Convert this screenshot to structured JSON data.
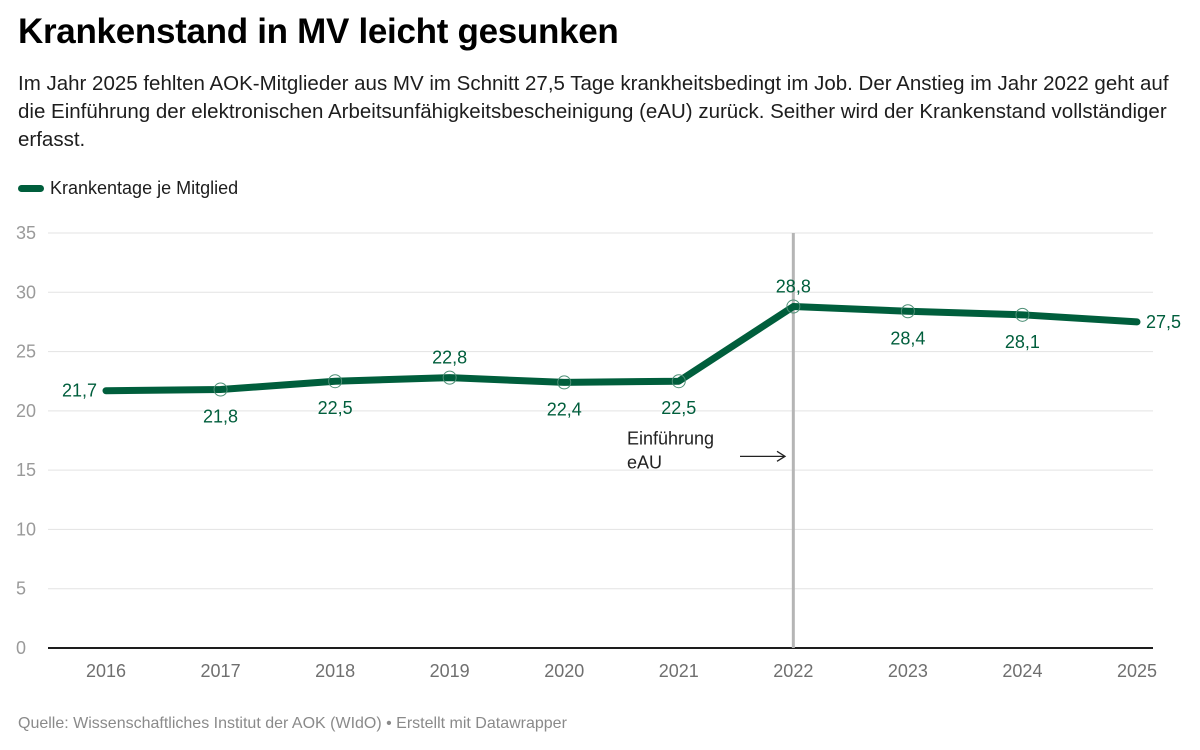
{
  "header": {
    "title": "Krankenstand in MV leicht gesunken",
    "subtitle": "Im Jahr 2025 fehlten AOK-Mitglieder aus MV im Schnitt 27,5 Tage krankheitsbedingt im Job. Der Anstieg im Jahr 2022 geht auf die Einführung der elektronischen Arbeitsunfähigkeitsbescheinigung (eAU) zurück. Seither wird der Krankenstand vollständiger erfasst."
  },
  "footer": {
    "text": "Quelle: Wissenschaftliches Institut der AOK (WIdO) • Erstellt mit Datawrapper"
  },
  "colors": {
    "series": "#005e3c",
    "grid": "#e3e3e3",
    "baseline": "#1d1d1d",
    "marker_line": "#b5b5b5"
  },
  "chart_data": {
    "type": "line",
    "title": "Krankenstand in MV leicht gesunken",
    "xlabel": "",
    "ylabel": "",
    "x": [
      "2016",
      "2017",
      "2018",
      "2019",
      "2020",
      "2021",
      "2022",
      "2023",
      "2024",
      "2025"
    ],
    "series": [
      {
        "name": "Krankentage je Mitglied",
        "values": [
          21.7,
          21.8,
          22.5,
          22.8,
          22.4,
          22.5,
          28.8,
          28.4,
          28.1,
          27.5
        ],
        "labels": [
          "21,7",
          "21,8",
          "22,5",
          "22,8",
          "22,4",
          "22,5",
          "28,8",
          "28,4",
          "28,1",
          "27,5"
        ],
        "label_position": [
          "left",
          "below",
          "below",
          "above",
          "below",
          "below",
          "above",
          "below",
          "below",
          "right"
        ]
      }
    ],
    "ylim": [
      0,
      35
    ],
    "yticks": [
      0,
      5,
      10,
      15,
      20,
      25,
      30,
      35
    ],
    "ytick_labels": [
      "0",
      "5",
      "10",
      "15",
      "20",
      "25",
      "30",
      "35"
    ],
    "grid": true,
    "legend": "top-left",
    "annotations": [
      {
        "type": "vertical-line",
        "x": "2022"
      },
      {
        "type": "text",
        "x": "2022",
        "y": 16.5,
        "lines": [
          "Einführung",
          "eAU"
        ],
        "arrow": "right"
      }
    ]
  }
}
